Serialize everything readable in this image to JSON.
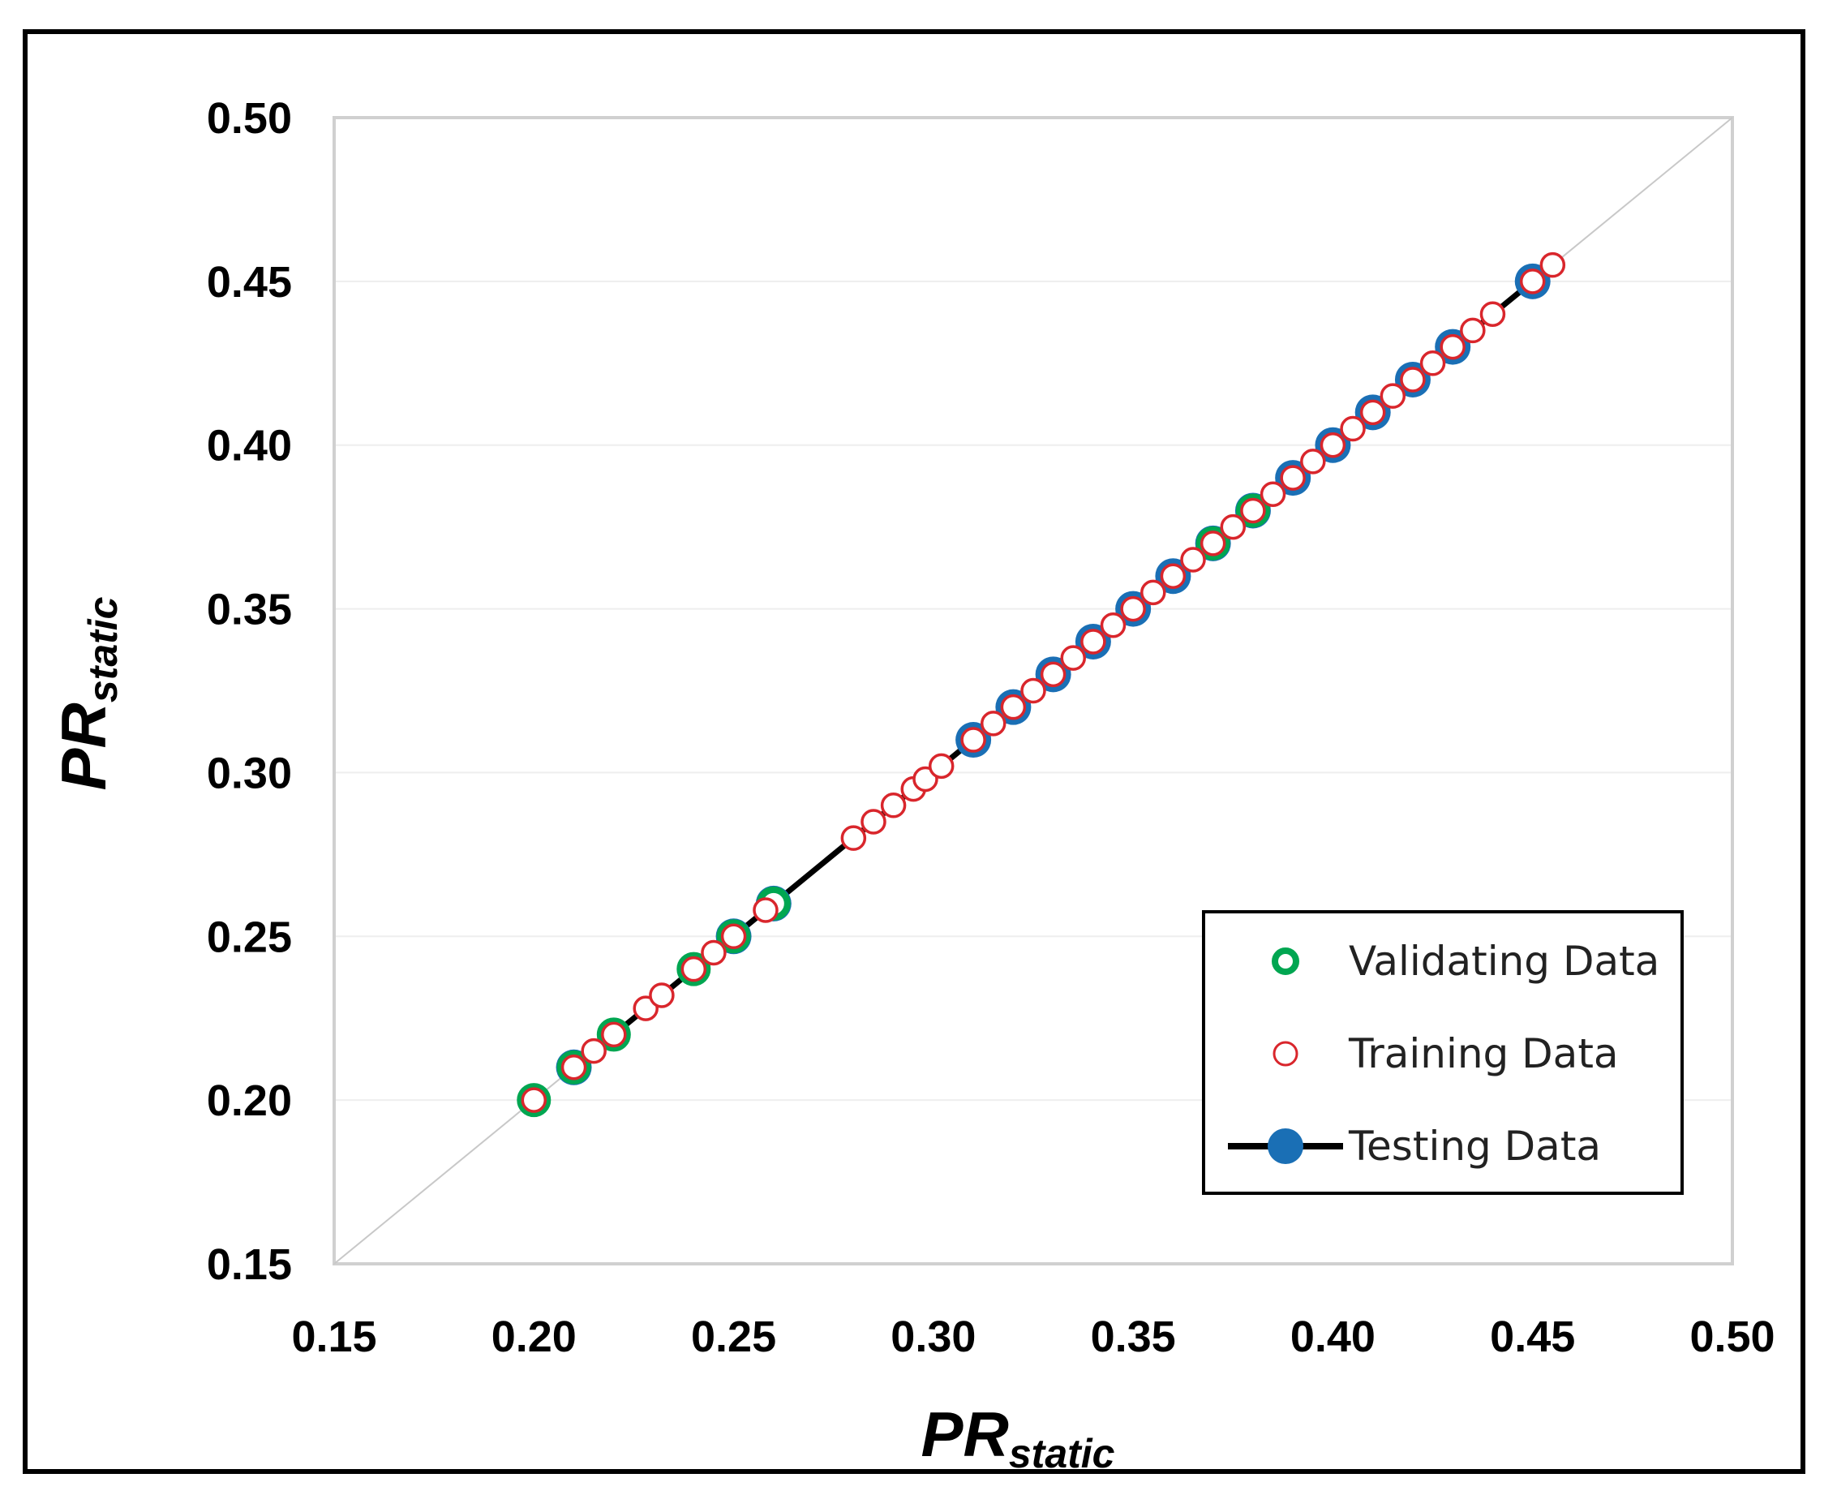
{
  "chart_data": {
    "type": "scatter",
    "title": "",
    "xlabel": {
      "main": "PR",
      "subscript": "static"
    },
    "ylabel": {
      "main": "PR",
      "subscript": "static"
    },
    "xlim": [
      0.15,
      0.5
    ],
    "ylim": [
      0.15,
      0.5
    ],
    "xticks": [
      "0.15",
      "0.20",
      "0.25",
      "0.30",
      "0.35",
      "0.40",
      "0.45",
      "0.50"
    ],
    "yticks": [
      "0.15",
      "0.20",
      "0.25",
      "0.30",
      "0.35",
      "0.40",
      "0.45",
      "0.50"
    ],
    "reference_line": {
      "x": [
        0.15,
        0.5
      ],
      "y": [
        0.15,
        0.5
      ],
      "color": "#c8c8c8"
    },
    "grid": "horizontal",
    "legend_position": "bottom-right",
    "series": [
      {
        "name": "Validating Data",
        "marker": "hollow-circle",
        "color": "#00a651",
        "points": [
          [
            0.2,
            0.2
          ],
          [
            0.21,
            0.21
          ],
          [
            0.22,
            0.22
          ],
          [
            0.24,
            0.24
          ],
          [
            0.25,
            0.25
          ],
          [
            0.26,
            0.26
          ],
          [
            0.37,
            0.37
          ],
          [
            0.38,
            0.38
          ]
        ]
      },
      {
        "name": "Training Data",
        "marker": "hollow-circle",
        "color": "#d9262c",
        "points": [
          [
            0.2,
            0.2
          ],
          [
            0.21,
            0.21
          ],
          [
            0.215,
            0.215
          ],
          [
            0.22,
            0.22
          ],
          [
            0.228,
            0.228
          ],
          [
            0.232,
            0.232
          ],
          [
            0.24,
            0.24
          ],
          [
            0.245,
            0.245
          ],
          [
            0.25,
            0.25
          ],
          [
            0.258,
            0.258
          ],
          [
            0.28,
            0.28
          ],
          [
            0.285,
            0.285
          ],
          [
            0.29,
            0.29
          ],
          [
            0.295,
            0.295
          ],
          [
            0.298,
            0.298
          ],
          [
            0.302,
            0.302
          ],
          [
            0.31,
            0.31
          ],
          [
            0.315,
            0.315
          ],
          [
            0.32,
            0.32
          ],
          [
            0.325,
            0.325
          ],
          [
            0.33,
            0.33
          ],
          [
            0.335,
            0.335
          ],
          [
            0.34,
            0.34
          ],
          [
            0.345,
            0.345
          ],
          [
            0.35,
            0.35
          ],
          [
            0.355,
            0.355
          ],
          [
            0.36,
            0.36
          ],
          [
            0.365,
            0.365
          ],
          [
            0.37,
            0.37
          ],
          [
            0.375,
            0.375
          ],
          [
            0.38,
            0.38
          ],
          [
            0.385,
            0.385
          ],
          [
            0.39,
            0.39
          ],
          [
            0.395,
            0.395
          ],
          [
            0.4,
            0.4
          ],
          [
            0.405,
            0.405
          ],
          [
            0.41,
            0.41
          ],
          [
            0.415,
            0.415
          ],
          [
            0.42,
            0.42
          ],
          [
            0.425,
            0.425
          ],
          [
            0.43,
            0.43
          ],
          [
            0.435,
            0.435
          ],
          [
            0.44,
            0.44
          ],
          [
            0.45,
            0.45
          ],
          [
            0.455,
            0.455
          ]
        ]
      },
      {
        "name": "Testing Data",
        "marker": "filled-circle-line",
        "color": "#1a6fb5",
        "line_color": "#000000",
        "points": [
          [
            0.21,
            0.21
          ],
          [
            0.25,
            0.25
          ],
          [
            0.26,
            0.26
          ],
          [
            0.31,
            0.31
          ],
          [
            0.32,
            0.32
          ],
          [
            0.33,
            0.33
          ],
          [
            0.34,
            0.34
          ],
          [
            0.35,
            0.35
          ],
          [
            0.36,
            0.36
          ],
          [
            0.37,
            0.37
          ],
          [
            0.38,
            0.38
          ],
          [
            0.39,
            0.39
          ],
          [
            0.4,
            0.4
          ],
          [
            0.41,
            0.41
          ],
          [
            0.42,
            0.42
          ],
          [
            0.43,
            0.43
          ],
          [
            0.45,
            0.45
          ]
        ]
      }
    ]
  }
}
